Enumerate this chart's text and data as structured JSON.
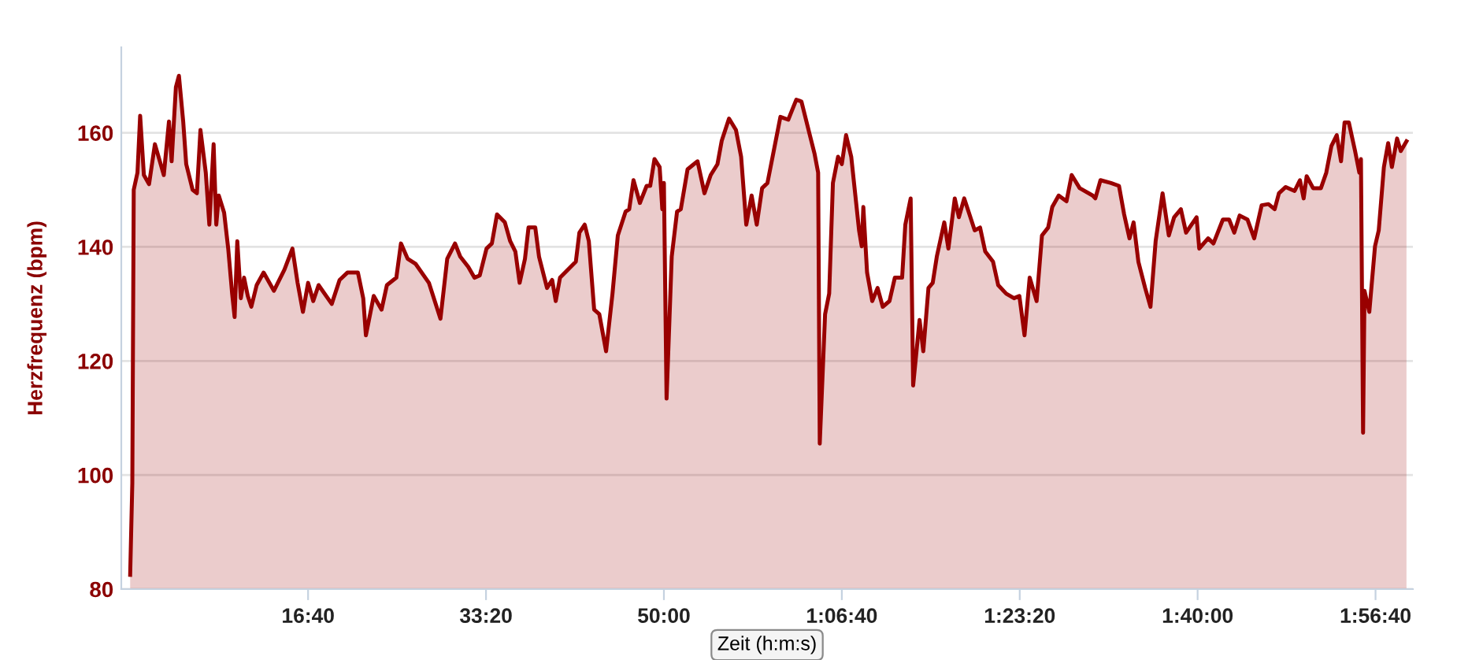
{
  "chart_data": {
    "type": "area",
    "ylabel": "Herzfrequenz (bpm)",
    "xlabel": "Zeit (h:m:s)",
    "xlim": [
      -50,
      7210
    ],
    "xticks": [
      {
        "value": 1000,
        "label": "16:40"
      },
      {
        "value": 2000,
        "label": "33:20"
      },
      {
        "value": 3000,
        "label": "50:00"
      },
      {
        "value": 4000,
        "label": "1:06:40"
      },
      {
        "value": 5000,
        "label": "1:23:20"
      },
      {
        "value": 6000,
        "label": "1:40:00"
      },
      {
        "value": 7000,
        "label": "1:56:40"
      }
    ],
    "ylim": [
      80,
      175
    ],
    "yticks": [
      80,
      100,
      120,
      140,
      160
    ],
    "grid": "y",
    "legend": false,
    "series": [
      {
        "color": "#990000",
        "x": [
          0,
          12,
          20,
          41,
          56,
          77,
          106,
          139,
          189,
          218,
          233,
          257,
          274,
          298,
          315,
          351,
          375,
          395,
          425,
          445,
          469,
          484,
          498,
          528,
          551,
          573,
          587,
          602,
          622,
          640,
          661,
          681,
          711,
          750,
          808,
          867,
          912,
          941,
          971,
          1000,
          1029,
          1059,
          1133,
          1177,
          1221,
          1280,
          1310,
          1325,
          1369,
          1413,
          1443,
          1496,
          1522,
          1560,
          1605,
          1679,
          1744,
          1782,
          1826,
          1855,
          1900,
          1935,
          1965,
          2003,
          2033,
          2062,
          2106,
          2136,
          2165,
          2189,
          2219,
          2239,
          2277,
          2298,
          2343,
          2372,
          2392,
          2416,
          2460,
          2505,
          2525,
          2555,
          2578,
          2608,
          2637,
          2675,
          2711,
          2741,
          2785,
          2805,
          2829,
          2865,
          2903,
          2923,
          2947,
          2976,
          2991,
          3000,
          3015,
          3044,
          3074,
          3095,
          3133,
          3168,
          3189,
          3228,
          3263,
          3301,
          3325,
          3366,
          3405,
          3434,
          3463,
          3493,
          3522,
          3552,
          3582,
          3611,
          3655,
          3699,
          3744,
          3773,
          3817,
          3847,
          3867,
          3876,
          3906,
          3929,
          3950,
          3979,
          4000,
          4024,
          4053,
          4097,
          4112,
          4121,
          4142,
          4171,
          4201,
          4230,
          4268,
          4298,
          4339,
          4357,
          4387,
          4401,
          4437,
          4458,
          4487,
          4511,
          4534,
          4576,
          4599,
          4635,
          4658,
          4688,
          4747,
          4777,
          4806,
          4850,
          4879,
          4924,
          4968,
          4998,
          5027,
          5056,
          5095,
          5125,
          5160,
          5183,
          5219,
          5263,
          5292,
          5337,
          5410,
          5425,
          5454,
          5513,
          5558,
          5587,
          5617,
          5640,
          5667,
          5705,
          5735,
          5764,
          5803,
          5838,
          5868,
          5906,
          5935,
          5994,
          6009,
          6059,
          6089,
          6142,
          6177,
          6206,
          6236,
          6280,
          6318,
          6360,
          6398,
          6433,
          6457,
          6495,
          6545,
          6575,
          6596,
          6613,
          6649,
          6693,
          6723,
          6752,
          6782,
          6806,
          6826,
          6850,
          6885,
          6909,
          6918,
          6930,
          6938,
          6965,
          6997,
          7018,
          7047,
          7071,
          7092,
          7121,
          7142,
          7174
        ],
        "values": [
          82.5,
          98.6,
          150,
          153,
          163,
          152.6,
          151,
          158,
          152.6,
          162,
          155,
          168,
          170,
          162,
          154.5,
          150,
          149.4,
          160.5,
          153,
          143.9,
          158,
          143.9,
          149,
          146,
          139.7,
          131.8,
          127.7,
          141,
          131,
          134.6,
          131.4,
          129.5,
          133.3,
          135.5,
          132.3,
          136,
          139.7,
          133.7,
          128.6,
          133.7,
          130.5,
          133.3,
          130,
          134.2,
          135.5,
          135.5,
          131,
          124.5,
          131.4,
          129,
          133.3,
          134.6,
          140.6,
          137.9,
          137,
          133.7,
          127.4,
          137.9,
          140.6,
          138.3,
          136.5,
          134.6,
          135,
          139.7,
          140.6,
          145.7,
          144.3,
          141,
          139.2,
          133.7,
          137.9,
          143.4,
          143.4,
          138.3,
          132.8,
          134.2,
          130.5,
          134.6,
          136,
          137.4,
          142.5,
          143.9,
          141,
          129,
          128.2,
          121.7,
          131.8,
          142,
          146.2,
          146.6,
          151.7,
          147.7,
          150.7,
          150.7,
          155.4,
          154,
          146.6,
          151.2,
          113.4,
          138.3,
          146.2,
          146.6,
          153.6,
          154.5,
          155,
          149.4,
          152.6,
          154.5,
          158.6,
          162.5,
          160.5,
          155.8,
          143.9,
          149,
          143.9,
          150.3,
          151.2,
          155.8,
          162.8,
          162.3,
          165.8,
          165.5,
          160,
          156.3,
          153,
          105.5,
          128.2,
          131.8,
          151.2,
          155.8,
          154.5,
          159.6,
          155.8,
          142.9,
          140.1,
          147,
          135.5,
          130.5,
          132.8,
          129.5,
          130.5,
          134.6,
          134.6,
          143.9,
          148.5,
          115.7,
          127.2,
          121.7,
          132.8,
          133.7,
          138.3,
          144.3,
          139.7,
          148.5,
          145.2,
          148.5,
          142.9,
          143.4,
          139.2,
          137.4,
          133.3,
          131.8,
          131,
          131.4,
          124.5,
          134.6,
          130.5,
          142,
          143.4,
          147,
          149,
          148,
          152.6,
          150.3,
          149,
          148.5,
          151.7,
          151.2,
          150.7,
          145.7,
          141.5,
          144.3,
          137.4,
          132.8,
          129.5,
          141,
          149.4,
          142,
          145.2,
          146.6,
          142.5,
          145.2,
          139.7,
          141.5,
          140.6,
          144.8,
          144.8,
          142.5,
          145.5,
          144.8,
          141.5,
          147.3,
          147.5,
          146.6,
          149.4,
          150.5,
          149.8,
          151.7,
          148.5,
          152.4,
          150.3,
          150.3,
          153,
          157.7,
          159.6,
          155,
          161.8,
          161.8,
          156.8,
          153,
          155.4,
          107.4,
          132.3,
          128.6,
          140.1,
          142.9,
          154,
          158.2,
          154,
          159,
          156.8,
          158.5
        ]
      }
    ]
  }
}
